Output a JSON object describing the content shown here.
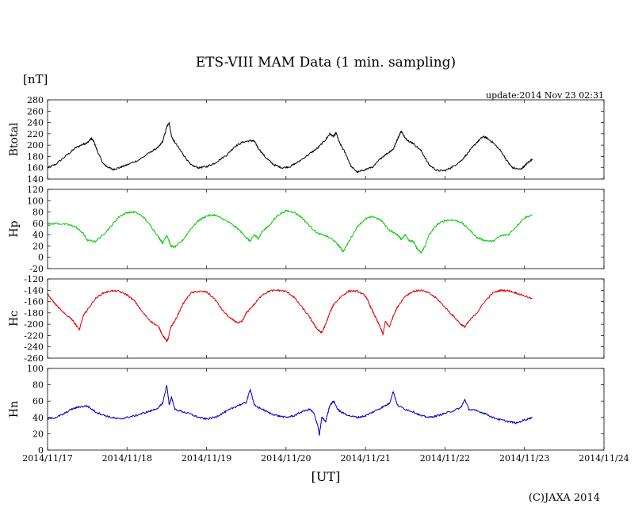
{
  "title": "ETS-VIII MAM Data (1 min. sampling)",
  "unit": "[nT]",
  "update": "update:2014 Nov 23 02:31",
  "xlabel": "[UT]",
  "copyright": "(C)JAXA 2014",
  "chart_data": {
    "type": "line",
    "x_ticks": [
      "2014/11/17",
      "2014/11/18",
      "2014/11/19",
      "2014/11/20",
      "2014/11/21",
      "2014/11/22",
      "2014/11/23",
      "2014/11/24"
    ],
    "xlim": [
      0,
      7
    ],
    "data_end_day": 6.1,
    "panels": [
      {
        "name": "Btotal",
        "color": "#000000",
        "ylim": [
          140,
          280
        ],
        "yticks": [
          140,
          160,
          180,
          200,
          220,
          240,
          260,
          280
        ],
        "points": [
          [
            0,
            160
          ],
          [
            0.1,
            166
          ],
          [
            0.25,
            183
          ],
          [
            0.35,
            195
          ],
          [
            0.45,
            202
          ],
          [
            0.5,
            204
          ],
          [
            0.55,
            212
          ],
          [
            0.58,
            207
          ],
          [
            0.63,
            188
          ],
          [
            0.7,
            167
          ],
          [
            0.75,
            162
          ],
          [
            0.82,
            157
          ],
          [
            0.9,
            160
          ],
          [
            1.0,
            165
          ],
          [
            1.15,
            174
          ],
          [
            1.3,
            188
          ],
          [
            1.4,
            197
          ],
          [
            1.45,
            207
          ],
          [
            1.5,
            232
          ],
          [
            1.53,
            240
          ],
          [
            1.56,
            215
          ],
          [
            1.6,
            205
          ],
          [
            1.7,
            185
          ],
          [
            1.8,
            165
          ],
          [
            1.9,
            160
          ],
          [
            2.0,
            162
          ],
          [
            2.1,
            168
          ],
          [
            2.25,
            182
          ],
          [
            2.35,
            197
          ],
          [
            2.45,
            205
          ],
          [
            2.55,
            208
          ],
          [
            2.6,
            207
          ],
          [
            2.65,
            195
          ],
          [
            2.75,
            177
          ],
          [
            2.85,
            165
          ],
          [
            2.95,
            160
          ],
          [
            3.05,
            162
          ],
          [
            3.15,
            170
          ],
          [
            3.3,
            185
          ],
          [
            3.4,
            195
          ],
          [
            3.5,
            210
          ],
          [
            3.55,
            220
          ],
          [
            3.6,
            215
          ],
          [
            3.63,
            222
          ],
          [
            3.67,
            205
          ],
          [
            3.75,
            185
          ],
          [
            3.82,
            162
          ],
          [
            3.9,
            152
          ],
          [
            4.0,
            157
          ],
          [
            4.1,
            162
          ],
          [
            4.2,
            178
          ],
          [
            4.3,
            188
          ],
          [
            4.35,
            193
          ],
          [
            4.4,
            210
          ],
          [
            4.45,
            225
          ],
          [
            4.5,
            212
          ],
          [
            4.55,
            207
          ],
          [
            4.6,
            203
          ],
          [
            4.7,
            190
          ],
          [
            4.8,
            165
          ],
          [
            4.9,
            155
          ],
          [
            5.0,
            155
          ],
          [
            5.1,
            162
          ],
          [
            5.2,
            172
          ],
          [
            5.3,
            188
          ],
          [
            5.4,
            205
          ],
          [
            5.48,
            215
          ],
          [
            5.52,
            213
          ],
          [
            5.6,
            205
          ],
          [
            5.7,
            190
          ],
          [
            5.8,
            168
          ],
          [
            5.85,
            160
          ],
          [
            5.95,
            157
          ],
          [
            6.0,
            163
          ],
          [
            6.05,
            170
          ],
          [
            6.1,
            175
          ]
        ]
      },
      {
        "name": "Hp",
        "color": "#00cc00",
        "ylim": [
          -20,
          120
        ],
        "yticks": [
          -20,
          0,
          20,
          40,
          60,
          80,
          100,
          120
        ],
        "points": [
          [
            0,
            57
          ],
          [
            0.1,
            60
          ],
          [
            0.25,
            58
          ],
          [
            0.35,
            54
          ],
          [
            0.45,
            42
          ],
          [
            0.5,
            30
          ],
          [
            0.6,
            28
          ],
          [
            0.7,
            40
          ],
          [
            0.8,
            55
          ],
          [
            0.9,
            72
          ],
          [
            1.0,
            79
          ],
          [
            1.1,
            80
          ],
          [
            1.2,
            72
          ],
          [
            1.3,
            55
          ],
          [
            1.4,
            35
          ],
          [
            1.45,
            25
          ],
          [
            1.5,
            40
          ],
          [
            1.55,
            20
          ],
          [
            1.6,
            18
          ],
          [
            1.7,
            30
          ],
          [
            1.8,
            50
          ],
          [
            1.9,
            65
          ],
          [
            2.0,
            73
          ],
          [
            2.1,
            75
          ],
          [
            2.2,
            68
          ],
          [
            2.3,
            60
          ],
          [
            2.4,
            50
          ],
          [
            2.5,
            35
          ],
          [
            2.55,
            28
          ],
          [
            2.6,
            40
          ],
          [
            2.65,
            33
          ],
          [
            2.7,
            45
          ],
          [
            2.8,
            58
          ],
          [
            2.9,
            75
          ],
          [
            3.0,
            82
          ],
          [
            3.1,
            80
          ],
          [
            3.2,
            70
          ],
          [
            3.3,
            55
          ],
          [
            3.4,
            42
          ],
          [
            3.5,
            38
          ],
          [
            3.6,
            30
          ],
          [
            3.68,
            18
          ],
          [
            3.72,
            10
          ],
          [
            3.8,
            30
          ],
          [
            3.9,
            55
          ],
          [
            4.0,
            68
          ],
          [
            4.1,
            72
          ],
          [
            4.2,
            65
          ],
          [
            4.3,
            48
          ],
          [
            4.4,
            40
          ],
          [
            4.45,
            32
          ],
          [
            4.5,
            40
          ],
          [
            4.55,
            30
          ],
          [
            4.6,
            28
          ],
          [
            4.65,
            15
          ],
          [
            4.7,
            8
          ],
          [
            4.75,
            20
          ],
          [
            4.8,
            40
          ],
          [
            4.9,
            58
          ],
          [
            5.0,
            65
          ],
          [
            5.1,
            66
          ],
          [
            5.2,
            62
          ],
          [
            5.3,
            50
          ],
          [
            5.4,
            35
          ],
          [
            5.5,
            30
          ],
          [
            5.6,
            28
          ],
          [
            5.7,
            38
          ],
          [
            5.8,
            40
          ],
          [
            5.9,
            55
          ],
          [
            6.0,
            70
          ],
          [
            6.1,
            75
          ]
        ]
      },
      {
        "name": "Hc",
        "color": "#e00000",
        "ylim": [
          -260,
          -120
        ],
        "yticks": [
          -260,
          -240,
          -220,
          -200,
          -180,
          -160,
          -140,
          -120
        ],
        "points": [
          [
            0,
            -147
          ],
          [
            0.1,
            -165
          ],
          [
            0.2,
            -180
          ],
          [
            0.3,
            -190
          ],
          [
            0.35,
            -200
          ],
          [
            0.4,
            -210
          ],
          [
            0.45,
            -185
          ],
          [
            0.5,
            -175
          ],
          [
            0.6,
            -155
          ],
          [
            0.7,
            -145
          ],
          [
            0.8,
            -141
          ],
          [
            0.9,
            -142
          ],
          [
            1.0,
            -148
          ],
          [
            1.1,
            -160
          ],
          [
            1.2,
            -180
          ],
          [
            1.3,
            -195
          ],
          [
            1.4,
            -205
          ],
          [
            1.45,
            -220
          ],
          [
            1.5,
            -230
          ],
          [
            1.52,
            -225
          ],
          [
            1.55,
            -205
          ],
          [
            1.6,
            -195
          ],
          [
            1.7,
            -165
          ],
          [
            1.8,
            -145
          ],
          [
            1.9,
            -142
          ],
          [
            2.0,
            -143
          ],
          [
            2.1,
            -155
          ],
          [
            2.2,
            -175
          ],
          [
            2.3,
            -190
          ],
          [
            2.4,
            -198
          ],
          [
            2.45,
            -195
          ],
          [
            2.5,
            -180
          ],
          [
            2.6,
            -165
          ],
          [
            2.7,
            -148
          ],
          [
            2.8,
            -141
          ],
          [
            2.9,
            -140
          ],
          [
            3.0,
            -142
          ],
          [
            3.1,
            -152
          ],
          [
            3.2,
            -170
          ],
          [
            3.3,
            -188
          ],
          [
            3.35,
            -200
          ],
          [
            3.4,
            -210
          ],
          [
            3.45,
            -215
          ],
          [
            3.5,
            -200
          ],
          [
            3.55,
            -180
          ],
          [
            3.6,
            -165
          ],
          [
            3.7,
            -150
          ],
          [
            3.8,
            -141
          ],
          [
            3.9,
            -142
          ],
          [
            4.0,
            -150
          ],
          [
            4.05,
            -165
          ],
          [
            4.1,
            -180
          ],
          [
            4.15,
            -195
          ],
          [
            4.2,
            -210
          ],
          [
            4.22,
            -218
          ],
          [
            4.25,
            -195
          ],
          [
            4.3,
            -205
          ],
          [
            4.35,
            -185
          ],
          [
            4.4,
            -170
          ],
          [
            4.5,
            -150
          ],
          [
            4.6,
            -142
          ],
          [
            4.7,
            -140
          ],
          [
            4.8,
            -145
          ],
          [
            4.9,
            -155
          ],
          [
            5.0,
            -170
          ],
          [
            5.1,
            -185
          ],
          [
            5.2,
            -200
          ],
          [
            5.25,
            -205
          ],
          [
            5.3,
            -195
          ],
          [
            5.4,
            -180
          ],
          [
            5.5,
            -160
          ],
          [
            5.6,
            -145
          ],
          [
            5.7,
            -140
          ],
          [
            5.8,
            -141
          ],
          [
            5.9,
            -145
          ],
          [
            6.0,
            -150
          ],
          [
            6.1,
            -155
          ]
        ]
      },
      {
        "name": "Hn",
        "color": "#0000cc",
        "ylim": [
          0,
          100
        ],
        "yticks": [
          0,
          20,
          40,
          60,
          80,
          100
        ],
        "points": [
          [
            0,
            38
          ],
          [
            0.1,
            40
          ],
          [
            0.2,
            44
          ],
          [
            0.3,
            50
          ],
          [
            0.4,
            53
          ],
          [
            0.5,
            54
          ],
          [
            0.6,
            47
          ],
          [
            0.7,
            43
          ],
          [
            0.8,
            40
          ],
          [
            0.9,
            38
          ],
          [
            1.0,
            40
          ],
          [
            1.1,
            42
          ],
          [
            1.2,
            45
          ],
          [
            1.3,
            48
          ],
          [
            1.4,
            52
          ],
          [
            1.45,
            58
          ],
          [
            1.5,
            80
          ],
          [
            1.53,
            55
          ],
          [
            1.56,
            65
          ],
          [
            1.6,
            50
          ],
          [
            1.7,
            47
          ],
          [
            1.8,
            44
          ],
          [
            1.9,
            40
          ],
          [
            2.0,
            38
          ],
          [
            2.1,
            40
          ],
          [
            2.2,
            45
          ],
          [
            2.3,
            50
          ],
          [
            2.4,
            55
          ],
          [
            2.5,
            58
          ],
          [
            2.55,
            75
          ],
          [
            2.6,
            55
          ],
          [
            2.7,
            50
          ],
          [
            2.8,
            45
          ],
          [
            2.9,
            42
          ],
          [
            3.0,
            40
          ],
          [
            3.1,
            42
          ],
          [
            3.2,
            47
          ],
          [
            3.3,
            50
          ],
          [
            3.35,
            45
          ],
          [
            3.4,
            30
          ],
          [
            3.42,
            18
          ],
          [
            3.45,
            40
          ],
          [
            3.5,
            35
          ],
          [
            3.55,
            55
          ],
          [
            3.6,
            60
          ],
          [
            3.65,
            50
          ],
          [
            3.7,
            46
          ],
          [
            3.8,
            42
          ],
          [
            3.9,
            40
          ],
          [
            4.0,
            42
          ],
          [
            4.1,
            47
          ],
          [
            4.2,
            52
          ],
          [
            4.3,
            57
          ],
          [
            4.35,
            72
          ],
          [
            4.4,
            55
          ],
          [
            4.5,
            50
          ],
          [
            4.6,
            47
          ],
          [
            4.7,
            42
          ],
          [
            4.8,
            40
          ],
          [
            4.9,
            42
          ],
          [
            5.0,
            45
          ],
          [
            5.1,
            48
          ],
          [
            5.2,
            52
          ],
          [
            5.25,
            62
          ],
          [
            5.3,
            50
          ],
          [
            5.4,
            48
          ],
          [
            5.5,
            45
          ],
          [
            5.6,
            40
          ],
          [
            5.7,
            37
          ],
          [
            5.8,
            35
          ],
          [
            5.9,
            33
          ],
          [
            6.0,
            37
          ],
          [
            6.1,
            40
          ]
        ]
      }
    ]
  }
}
